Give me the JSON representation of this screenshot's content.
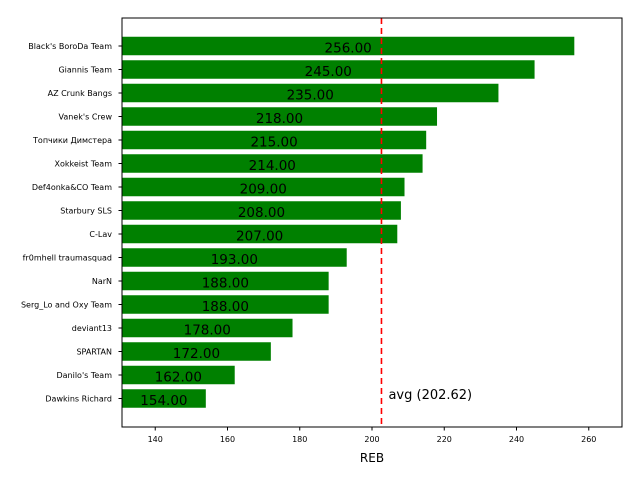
{
  "chart_data": {
    "type": "bar",
    "orientation": "horizontal",
    "categories": [
      "Black's BoroDa Team",
      "Giannis Team",
      "AZ Crunk Bangs",
      "Vanek's Crew",
      "Топчики Димстера",
      "Xokkeist Team",
      "Def4onka&CO Team",
      "Starbury SLS",
      "C-Lav",
      "fr0mhell traumasquad",
      "NarN",
      "Serg_Lo and Oxy Team",
      "deviant13",
      "SPARTAN",
      "Danilo's Team",
      "Dawkins Richard"
    ],
    "values": [
      256,
      245,
      235,
      218,
      215,
      214,
      209,
      208,
      207,
      193,
      188,
      188,
      178,
      172,
      162,
      154
    ],
    "value_labels": [
      "256.00",
      "245.00",
      "235.00",
      "218.00",
      "215.00",
      "214.00",
      "209.00",
      "208.00",
      "207.00",
      "193.00",
      "188.00",
      "188.00",
      "178.00",
      "172.00",
      "162.00",
      "154.00"
    ],
    "bar_color": "#008000",
    "xlabel": "REB",
    "ylabel": "",
    "xlim": [
      130.8,
      269.2
    ],
    "xticks": [
      140,
      160,
      180,
      200,
      220,
      240,
      260
    ],
    "xtick_labels": [
      "140",
      "160",
      "180",
      "200",
      "220",
      "240",
      "260"
    ],
    "average": {
      "value": 202.62,
      "label": "avg (202.62)",
      "color": "#ff0000",
      "style": "dashed"
    },
    "grid": false,
    "legend": "none"
  }
}
